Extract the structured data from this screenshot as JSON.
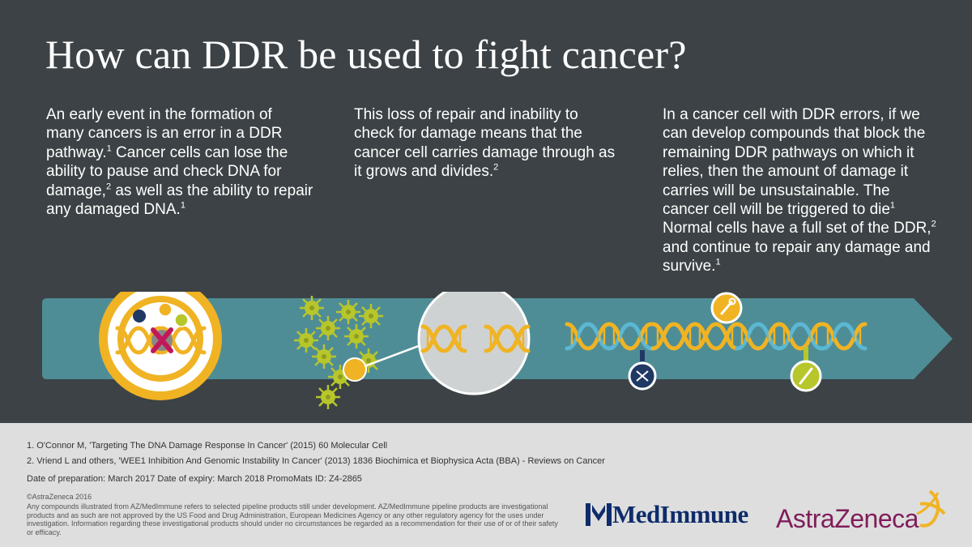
{
  "title": "How can DDR be used to fight cancer?",
  "columns": {
    "col1": {
      "p1": "An early event in the formation of many cancers is an error in a DDR pathway.",
      "sup1": "1",
      "p2": "  Cancer cells can lose the ability to pause and check DNA for damage,",
      "sup2": "2",
      "p3": " as well as the ability to repair any damaged DNA.",
      "sup3": "1"
    },
    "col2": {
      "p1": "This loss of repair and inability to check for damage means that the cancer cell carries damage through as it grows and divides.",
      "sup1": "2"
    },
    "col3": {
      "p1": "In a cancer cell with DDR errors, if we can develop compounds that block the remaining DDR pathways on which it relies, then the amount of damage it carries will be unsustainable. The cancer cell will be triggered to die",
      "sup1": "1",
      "p2": " Normal cells have a full set of the DDR,",
      "sup2": "2",
      "p3": " and continue to repair any damage and survive.",
      "sup3": "1"
    }
  },
  "footer": {
    "ref1": "1. O'Connor M, 'Targeting The DNA Damage Response In Cancer' (2015) 60 Molecular Cell",
    "ref2": "2. Vriend L and others, 'WEE1 Inhibition And Genomic Instability In Cancer' (2013) 1836 Biochimica et Biophysica Acta (BBA) - Reviews on Cancer",
    "preparation": "Date of preparation: March 2017  Date of expiry: March 2018  PromoMats ID: Z4-2865",
    "copyright": "©AstraZeneca 2016",
    "disclaimer": "Any compounds illustrated from AZ/MedImmune refers to selected pipeline products still under development. AZ/MedImmune pipeline products are investigational products and as such are not approved by the US Food and Drug Administration, European Medicines Agency or any other regulatory agency for the uses under investigation. Information regarding these investigational products should under no circumstances be regarded as a recommendation for their use of or of their safety or efficacy."
  },
  "logos": {
    "medimmune": "MedImmune",
    "astrazeneca": "AstraZeneca"
  },
  "icons": [
    "scissors-icon",
    "wrench-icon",
    "screwdriver-icon",
    "dna-helix-icon",
    "cancer-cell-icon"
  ],
  "colors": {
    "background": "#3c4245",
    "band": "#4f8d96",
    "accent_yellow": "#f0b323",
    "accent_green": "#b7c62b",
    "navy": "#1f3864",
    "magenta": "#a3195b",
    "footer_bg": "#dedede"
  }
}
